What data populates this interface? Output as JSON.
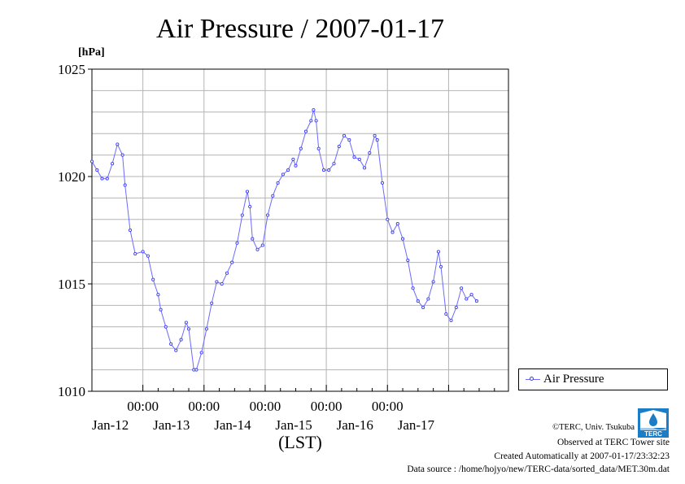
{
  "chart_data": {
    "type": "line",
    "title": "Air Pressure / 2007-01-17",
    "ylabel": "[hPa]",
    "xlabel": "(LST)",
    "ylim": [
      1010,
      1025
    ],
    "xlim": [
      "2007-01-11 04:00",
      "2007-01-17 23:30"
    ],
    "y_ticks": [
      {
        "value": 1025,
        "label": "1025"
      },
      {
        "value": 1020,
        "label": "1020"
      },
      {
        "value": 1015,
        "label": "1015"
      },
      {
        "value": 1010,
        "label": "1010"
      }
    ],
    "x_ticks": [
      {
        "time": "2007-01-12 00:00",
        "time_label": "00:00",
        "date_label": "Jan-12"
      },
      {
        "time": "2007-01-13 00:00",
        "time_label": "00:00",
        "date_label": "Jan-13"
      },
      {
        "time": "2007-01-14 00:00",
        "time_label": "00:00",
        "date_label": "Jan-14"
      },
      {
        "time": "2007-01-15 00:00",
        "time_label": "00:00",
        "date_label": "Jan-15"
      },
      {
        "time": "2007-01-16 00:00",
        "time_label": "00:00",
        "date_label": "Jan-16"
      },
      {
        "time": "2007-01-17 00:00",
        "time_label": null,
        "date_label": "Jan-17"
      }
    ],
    "grid": true,
    "legend": "outside-bottom-right",
    "series": [
      {
        "name": "Air Pressure",
        "color": "#3a3aff",
        "points": [
          [
            "2007-01-11 04:00",
            1020.7
          ],
          [
            "2007-01-11 06:00",
            1020.3
          ],
          [
            "2007-01-11 08:00",
            1019.9
          ],
          [
            "2007-01-11 10:00",
            1019.9
          ],
          [
            "2007-01-11 12:00",
            1020.6
          ],
          [
            "2007-01-11 14:00",
            1021.5
          ],
          [
            "2007-01-11 16:00",
            1021.0
          ],
          [
            "2007-01-11 17:00",
            1019.6
          ],
          [
            "2007-01-11 19:00",
            1017.5
          ],
          [
            "2007-01-11 21:00",
            1016.4
          ],
          [
            "2007-01-12 00:00",
            1016.5
          ],
          [
            "2007-01-12 02:00",
            1016.3
          ],
          [
            "2007-01-12 04:00",
            1015.2
          ],
          [
            "2007-01-12 06:00",
            1014.5
          ],
          [
            "2007-01-12 07:00",
            1013.8
          ],
          [
            "2007-01-12 09:00",
            1013.0
          ],
          [
            "2007-01-12 11:00",
            1012.2
          ],
          [
            "2007-01-12 13:00",
            1011.9
          ],
          [
            "2007-01-12 15:00",
            1012.4
          ],
          [
            "2007-01-12 17:00",
            1013.2
          ],
          [
            "2007-01-12 18:00",
            1012.9
          ],
          [
            "2007-01-12 20:00",
            1011.0
          ],
          [
            "2007-01-12 21:00",
            1011.0
          ],
          [
            "2007-01-12 23:00",
            1011.8
          ],
          [
            "2007-01-13 01:00",
            1012.9
          ],
          [
            "2007-01-13 03:00",
            1014.1
          ],
          [
            "2007-01-13 05:00",
            1015.1
          ],
          [
            "2007-01-13 07:00",
            1015.0
          ],
          [
            "2007-01-13 09:00",
            1015.5
          ],
          [
            "2007-01-13 11:00",
            1016.0
          ],
          [
            "2007-01-13 13:00",
            1016.9
          ],
          [
            "2007-01-13 15:00",
            1018.2
          ],
          [
            "2007-01-13 17:00",
            1019.3
          ],
          [
            "2007-01-13 18:00",
            1018.6
          ],
          [
            "2007-01-13 19:00",
            1017.1
          ],
          [
            "2007-01-13 21:00",
            1016.6
          ],
          [
            "2007-01-13 23:00",
            1016.8
          ],
          [
            "2007-01-14 01:00",
            1018.2
          ],
          [
            "2007-01-14 03:00",
            1019.1
          ],
          [
            "2007-01-14 05:00",
            1019.7
          ],
          [
            "2007-01-14 07:00",
            1020.1
          ],
          [
            "2007-01-14 09:00",
            1020.3
          ],
          [
            "2007-01-14 11:00",
            1020.8
          ],
          [
            "2007-01-14 12:00",
            1020.5
          ],
          [
            "2007-01-14 14:00",
            1021.3
          ],
          [
            "2007-01-14 16:00",
            1022.1
          ],
          [
            "2007-01-14 18:00",
            1022.6
          ],
          [
            "2007-01-14 19:00",
            1023.1
          ],
          [
            "2007-01-14 20:00",
            1022.6
          ],
          [
            "2007-01-14 21:00",
            1021.3
          ],
          [
            "2007-01-14 23:00",
            1020.3
          ],
          [
            "2007-01-15 01:00",
            1020.3
          ],
          [
            "2007-01-15 03:00",
            1020.6
          ],
          [
            "2007-01-15 05:00",
            1021.4
          ],
          [
            "2007-01-15 07:00",
            1021.9
          ],
          [
            "2007-01-15 09:00",
            1021.7
          ],
          [
            "2007-01-15 11:00",
            1020.9
          ],
          [
            "2007-01-15 13:00",
            1020.8
          ],
          [
            "2007-01-15 15:00",
            1020.4
          ],
          [
            "2007-01-15 17:00",
            1021.1
          ],
          [
            "2007-01-15 19:00",
            1021.9
          ],
          [
            "2007-01-15 20:00",
            1021.7
          ],
          [
            "2007-01-15 22:00",
            1019.7
          ],
          [
            "2007-01-16 00:00",
            1018.0
          ],
          [
            "2007-01-16 02:00",
            1017.4
          ],
          [
            "2007-01-16 04:00",
            1017.8
          ],
          [
            "2007-01-16 06:00",
            1017.1
          ],
          [
            "2007-01-16 08:00",
            1016.1
          ],
          [
            "2007-01-16 10:00",
            1014.8
          ],
          [
            "2007-01-16 12:00",
            1014.2
          ],
          [
            "2007-01-16 14:00",
            1013.9
          ],
          [
            "2007-01-16 16:00",
            1014.3
          ],
          [
            "2007-01-16 18:00",
            1015.1
          ],
          [
            "2007-01-16 20:00",
            1016.5
          ],
          [
            "2007-01-16 21:00",
            1015.8
          ],
          [
            "2007-01-16 23:00",
            1013.6
          ],
          [
            "2007-01-17 01:00",
            1013.3
          ],
          [
            "2007-01-17 03:00",
            1013.9
          ],
          [
            "2007-01-17 05:00",
            1014.8
          ],
          [
            "2007-01-17 07:00",
            1014.3
          ],
          [
            "2007-01-17 09:00",
            1014.5
          ],
          [
            "2007-01-17 11:00",
            1014.2
          ]
        ]
      }
    ]
  },
  "footer": {
    "copyright": "©TERC, Univ. Tsukuba",
    "observed": "Observed at TERC Tower site",
    "created": "Created Automatically at 2007-01-17/23:32:23",
    "source": "Data source : /home/hojyo/new/TERC-data/sorted_data/MET.30m.dat"
  },
  "logo": {
    "text": "TERC",
    "colors": {
      "primary": "#1a7dc6"
    }
  }
}
